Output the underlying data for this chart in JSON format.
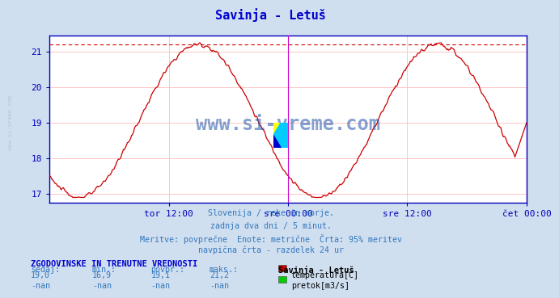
{
  "title": "Savinja - Letuš",
  "title_color": "#0000cc",
  "bg_color": "#d0dff0",
  "plot_bg_color": "#ffffff",
  "grid_color": "#ffbbbb",
  "axis_color": "#0000bb",
  "line_color": "#cc0000",
  "vline_color": "#cc00cc",
  "hline_dashed_color": "#cc0000",
  "ylim": [
    16.75,
    21.45
  ],
  "yticks": [
    17,
    18,
    19,
    20,
    21
  ],
  "ylabel_color": "#0000bb",
  "xticklabels": [
    "tor 12:00",
    "sre 00:00",
    "sre 12:00",
    "čet 00:00"
  ],
  "xtick_positions": [
    0.25,
    0.5,
    0.75,
    1.0
  ],
  "watermark": "www.si-vreme.com",
  "watermark_color": "#2255aa",
  "subtitle_lines": [
    "Slovenija / reke in morje.",
    "zadnja dva dni / 5 minut.",
    "Meritve: povprečne  Enote: metrične  Črta: 95% meritev",
    "navpična črta - razdelek 24 ur"
  ],
  "subtitle_color": "#3377bb",
  "table_header": "ZGODOVINSKE IN TRENUTNE VREDNOSTI",
  "table_header_color": "#0000cc",
  "table_cols": [
    "sedaj:",
    "min.:",
    "povpr.:",
    "maks.:"
  ],
  "table_vals_temp": [
    "19,0",
    "16,9",
    "19,1",
    "21,2"
  ],
  "table_vals_pretok": [
    "-nan",
    "-nan",
    "-nan",
    "-nan"
  ],
  "table_col_color": "#3377bb",
  "legend_label_temp": "temperatura[C]",
  "legend_label_pretok": "pretok[m3/s]",
  "legend_color_temp": "#cc0000",
  "legend_color_pretok": "#00cc00",
  "station_label": "Savinja - Letuš",
  "station_label_color": "#000000",
  "max_line_y": 21.2,
  "vline_x_mid": 0.5,
  "vline_x_right": 1.0,
  "temp_mean": 19.05,
  "temp_amp": 2.15,
  "temp_phase": 0.1,
  "n_points": 576
}
